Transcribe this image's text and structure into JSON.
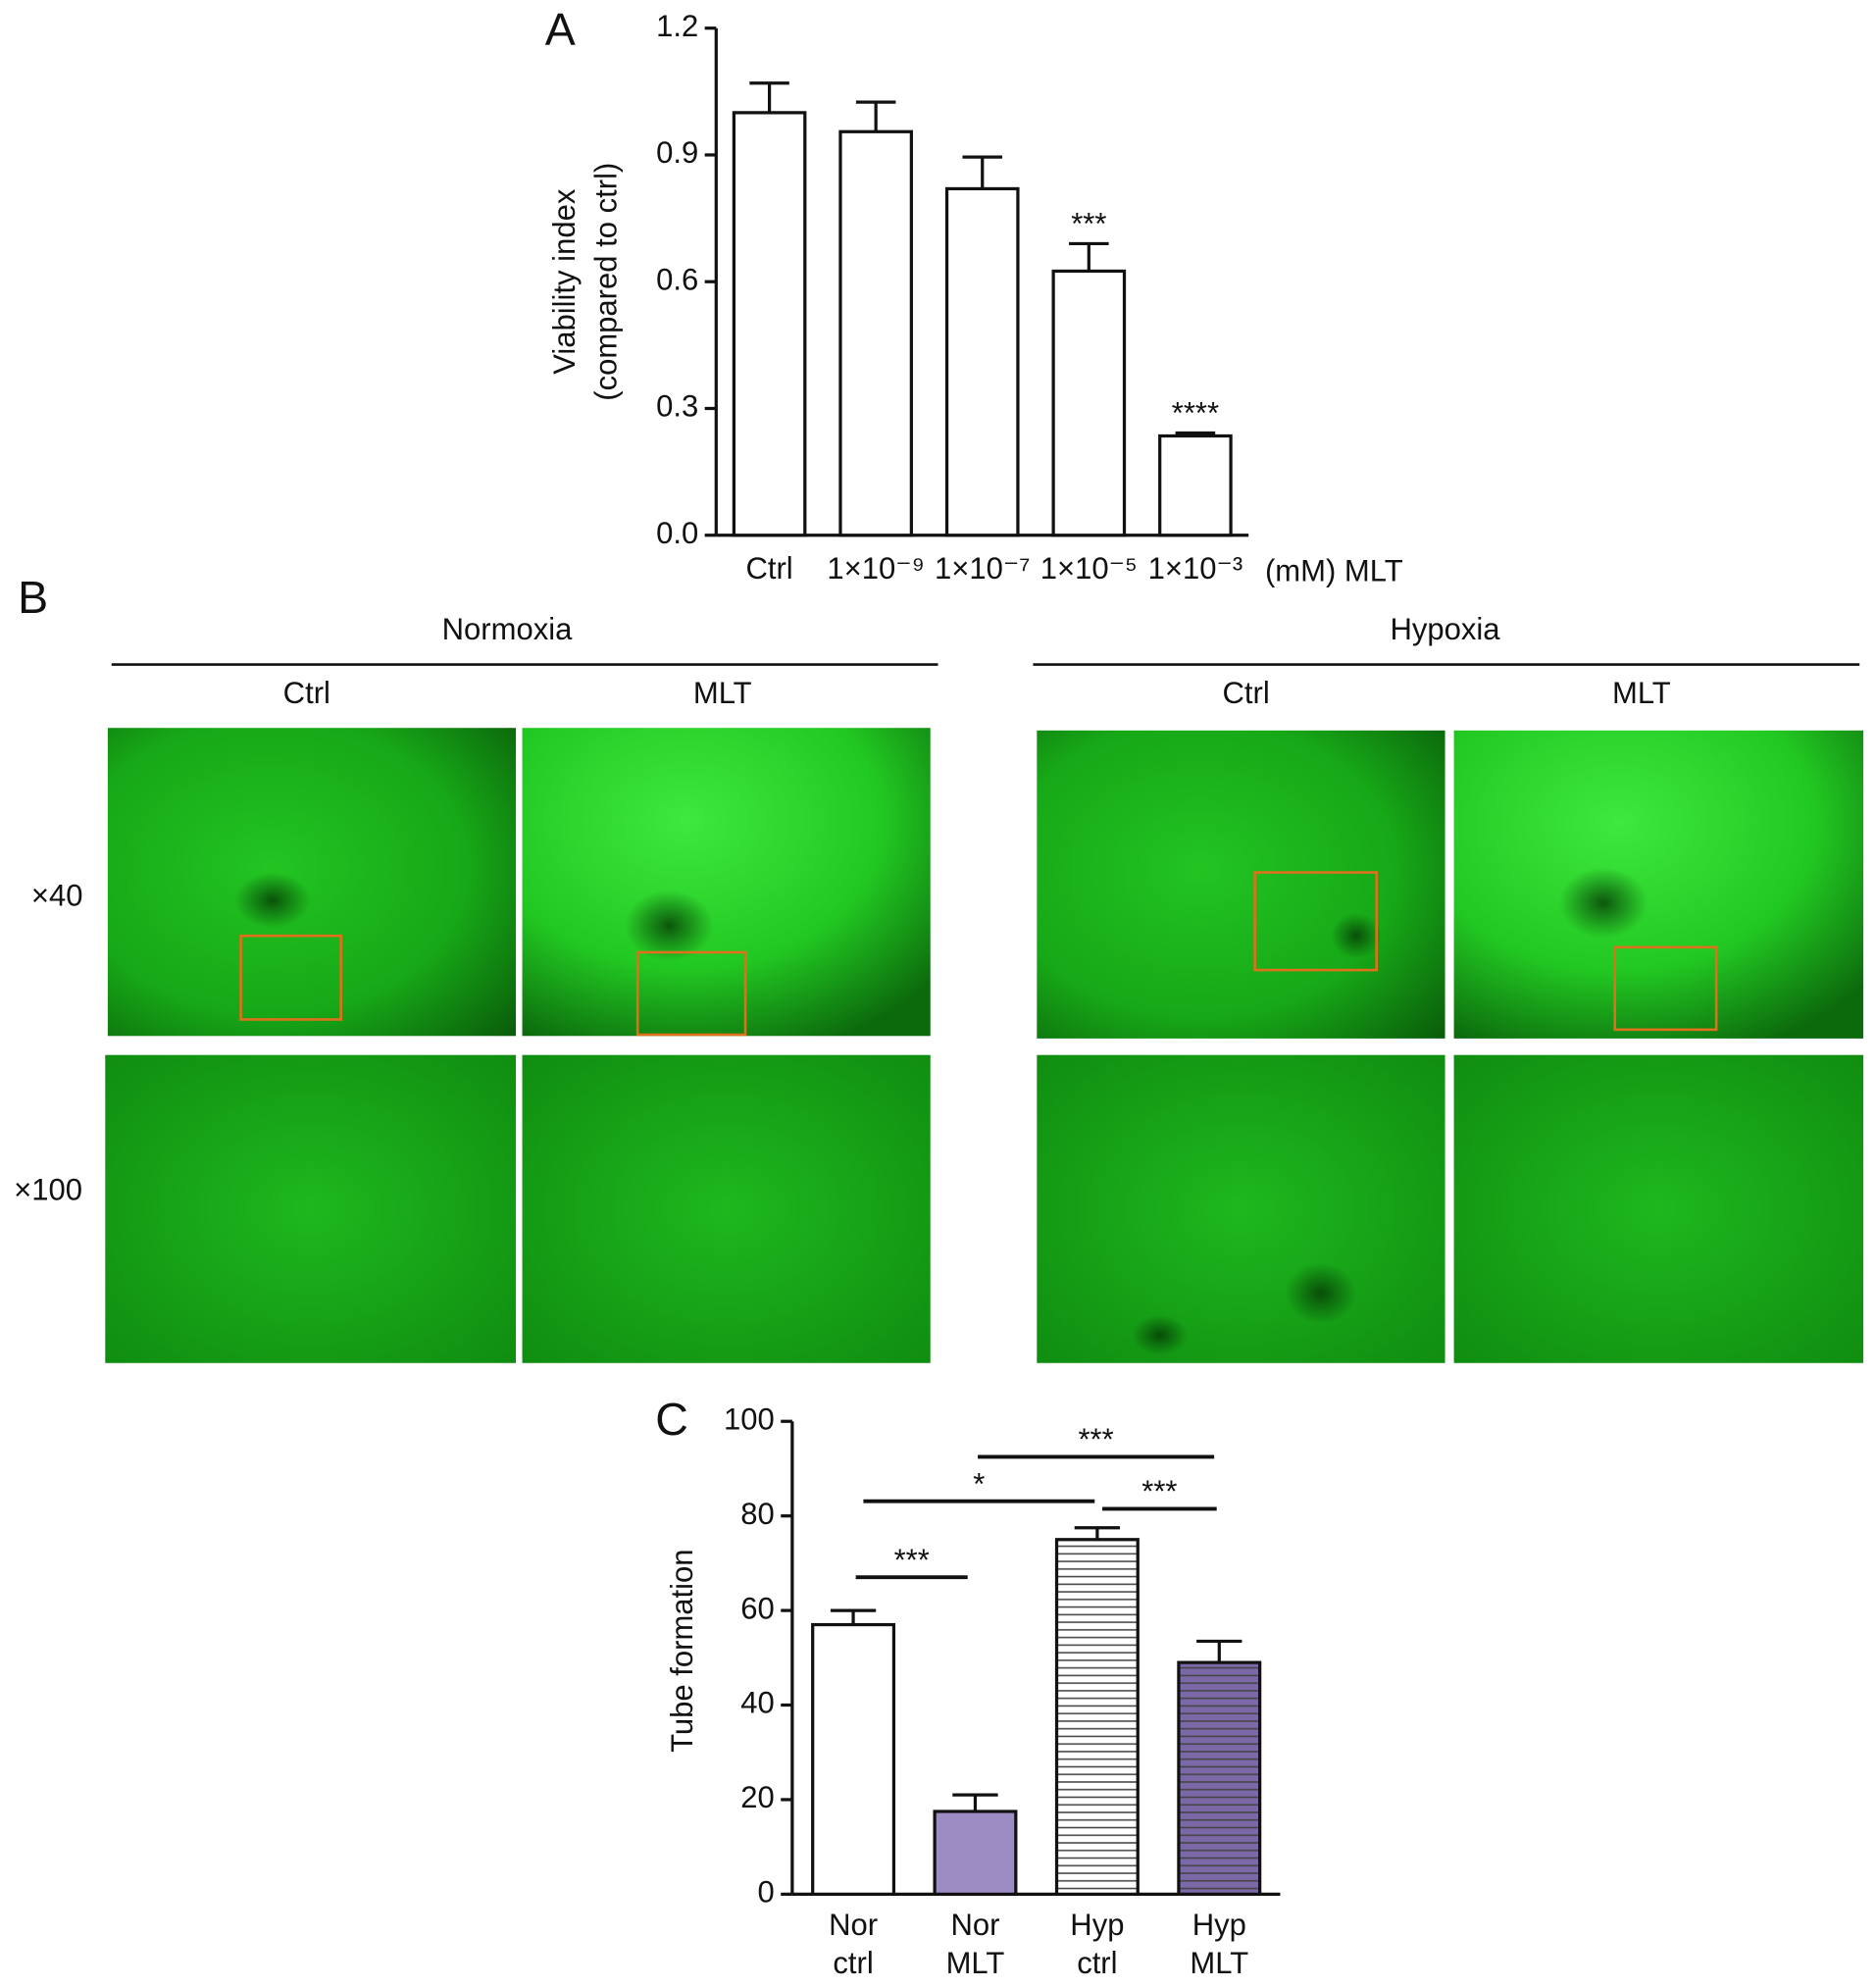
{
  "panel_labels": [
    "A",
    "B",
    "C"
  ],
  "micrographs": {
    "groups": [
      {
        "title": "Normoxia",
        "columns": [
          "Ctrl",
          "MLT"
        ]
      },
      {
        "title": "Hypoxia",
        "columns": [
          "Ctrl",
          "MLT"
        ]
      }
    ],
    "rows": [
      "×40",
      "×100"
    ]
  },
  "chart_data": [
    {
      "type": "bar",
      "xlabel": "(mM) MLT",
      "ylabel": [
        "Viability index",
        "(compared to ctrl)"
      ],
      "categories": [
        "Ctrl",
        "1×10⁻⁹",
        "1×10⁻⁷",
        "1×10⁻⁵",
        "1×10⁻³"
      ],
      "values": [
        1.0,
        0.955,
        0.82,
        0.625,
        0.235
      ],
      "errors": [
        0.07,
        0.07,
        0.075,
        0.065,
        0.007
      ],
      "colors": [
        "#ffffff",
        "#ffffff",
        "#ffffff",
        "#ffffff",
        "#ffffff"
      ],
      "annotations": [
        {
          "index": 3,
          "label": "***"
        },
        {
          "index": 4,
          "label": "****"
        }
      ],
      "ylim": [
        0,
        1.2
      ],
      "yticks": [
        {
          "value": 0,
          "label": "0.0"
        },
        0.3,
        0.6,
        0.9,
        1.2
      ]
    },
    {
      "type": "bar",
      "ylabel": [
        "Tube formation"
      ],
      "categories": [
        [
          "Nor",
          "ctrl"
        ],
        [
          "Nor",
          "MLT"
        ],
        [
          "Hyp",
          "ctrl"
        ],
        [
          "Hyp",
          "MLT"
        ]
      ],
      "values": [
        57,
        17.5,
        75,
        49
      ],
      "errors": [
        3,
        3.5,
        2.5,
        4.5
      ],
      "colors": [
        "#ffffff",
        "#9d8cc4",
        "#ffffff",
        "#7b68a6"
      ],
      "hatch": [
        false,
        false,
        true,
        true
      ],
      "comparisons": [
        {
          "pair": [
            0,
            1
          ],
          "label": "***"
        },
        {
          "pair": [
            0,
            2
          ],
          "label": "*"
        },
        {
          "pair": [
            1,
            3
          ],
          "label": "***"
        },
        {
          "pair": [
            2,
            3
          ],
          "label": "***"
        }
      ],
      "ylim": [
        0,
        100
      ],
      "yticks": [
        0,
        20,
        40,
        60,
        80,
        100
      ]
    }
  ]
}
